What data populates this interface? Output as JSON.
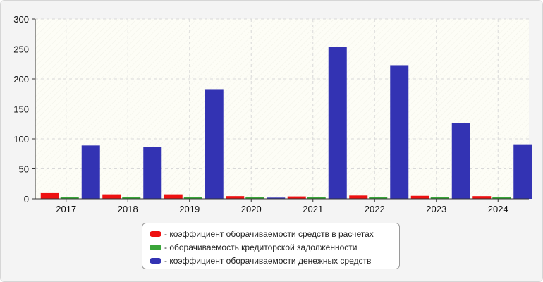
{
  "chart_data": {
    "type": "bar",
    "categories": [
      "2017",
      "2018",
      "2019",
      "2020",
      "2021",
      "2022",
      "2023",
      "2024"
    ],
    "series": [
      {
        "name": "- коэффициент оборачиваемости средств в расчетах",
        "color": "#ee1111",
        "values": [
          9.5,
          7.5,
          7.5,
          4.5,
          4,
          5.5,
          5,
          4.5
        ]
      },
      {
        "name": "- оборачиваемость кредиторской задолженности",
        "color": "#3aa539",
        "values": [
          3.5,
          3.5,
          3.5,
          2.5,
          2.5,
          2.5,
          3.5,
          3.5
        ]
      },
      {
        "name": "- коэффициент оборачиваемости денежных средств",
        "color": "#3333b3",
        "values": [
          89,
          87,
          183,
          2,
          253,
          223,
          126,
          91
        ]
      }
    ],
    "yticks": [
      0,
      50,
      100,
      150,
      200,
      250,
      300
    ],
    "ylim": [
      0,
      300
    ],
    "grid": true,
    "legend_position": "bottom"
  }
}
